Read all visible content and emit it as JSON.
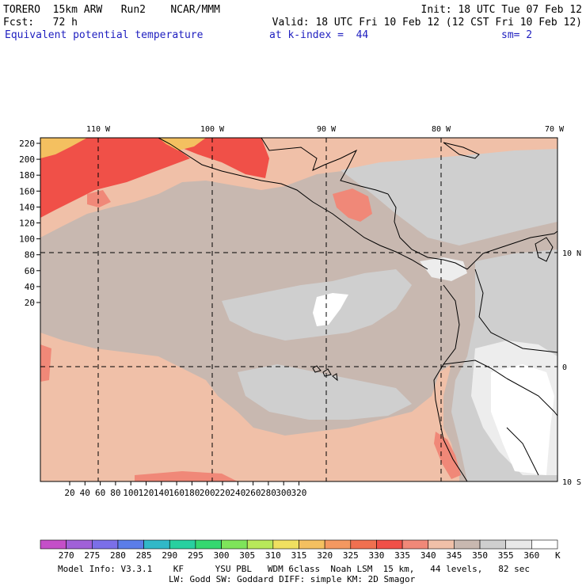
{
  "header": {
    "left_line1": "TORERO  15km ARW   Run2    NCAR/MMM",
    "right_line1": "Init: 18 UTC Tue 07 Feb 12",
    "left_line2": "Fcst:   72 h",
    "right_line2": "Valid: 18 UTC Fri 10 Feb 12 (12 CST Fri 10 Feb 12)",
    "field_name": "Equivalent potential temperature",
    "k_index_label": "at k-index =  44",
    "sm_label": "sm= 2"
  },
  "map": {
    "top_longitude_labels": [
      "110 W",
      "100 W",
      "90 W",
      "80 W",
      "70 W"
    ],
    "right_latitude_labels": [
      "10 N",
      "0",
      "10 S"
    ],
    "left_axis_ticks": [
      "220",
      "200",
      "180",
      "160",
      "140",
      "120",
      "100",
      "80",
      "60",
      "40",
      "20"
    ],
    "bottom_axis_ticks": [
      "20",
      "40",
      "60",
      "80",
      "100",
      "120",
      "140",
      "160",
      "180",
      "200",
      "220",
      "240",
      "260",
      "280",
      "300",
      "320"
    ]
  },
  "colorbar": {
    "labels": [
      "270",
      "275",
      "280",
      "285",
      "290",
      "295",
      "300",
      "305",
      "310",
      "315",
      "320",
      "325",
      "330",
      "335",
      "340",
      "345",
      "350",
      "355",
      "360"
    ],
    "unit": "K",
    "colors": [
      "#c44fc8",
      "#a060d8",
      "#7b6fe8",
      "#5b7de8",
      "#31b8c8",
      "#28d0a0",
      "#35d870",
      "#7ee45a",
      "#b8e85a",
      "#f0e060",
      "#f4c060",
      "#f49860",
      "#f07050",
      "#f05048",
      "#f08878",
      "#f0c0a8",
      "#c8b8b0",
      "#cfcfcf",
      "#e8e8e8",
      "#ffffff"
    ]
  },
  "footer": {
    "line1": "Model Info: V3.3.1    KF      YSU PBL   WDM 6class  Noah LSM  15 km,   44 levels,   82 sec",
    "line2": "LW: Godd SW: Goddard DIFF: simple KM: 2D Smagor"
  }
}
